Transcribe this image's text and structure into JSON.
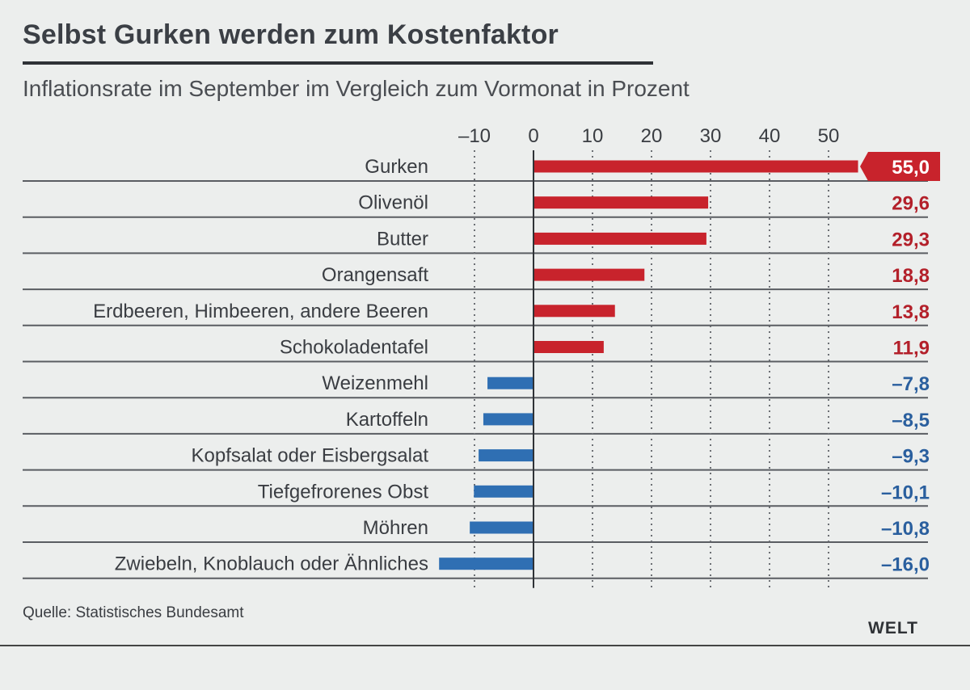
{
  "chart_data": {
    "type": "bar",
    "orientation": "horizontal",
    "title": "Selbst Gurken werden zum Kostenfaktor",
    "subtitle": "Inflationsrate im September im Vergleich zum Vormonat in Prozent",
    "categories": [
      "Gurken",
      "Olivenöl",
      "Butter",
      "Orangensaft",
      "Erdbeeren, Himbeeren, andere Beeren",
      "Schokoladentafel",
      "Weizenmehl",
      "Kartoffeln",
      "Kopfsalat oder Eisbergsalat",
      "Tiefgefrorenes Obst",
      "Möhren",
      "Zwiebeln, Knoblauch oder Ähnliches"
    ],
    "values": [
      55.0,
      29.6,
      29.3,
      18.8,
      13.8,
      11.9,
      -7.8,
      -8.5,
      -9.3,
      -10.1,
      -10.8,
      -16.0
    ],
    "value_labels": [
      "55,0",
      "29,6",
      "29,3",
      "18,8",
      "13,8",
      "11,9",
      "–7,8",
      "–8,5",
      "–9,3",
      "–10,1",
      "–10,8",
      "–16,0"
    ],
    "ticks": [
      -10,
      0,
      10,
      20,
      30,
      40,
      50
    ],
    "tick_labels": [
      "–10",
      "0",
      "10",
      "20",
      "30",
      "40",
      "50"
    ],
    "xlim": [
      -16,
      55
    ],
    "grid": true,
    "highlight_index": 0,
    "colors": {
      "positive": "#c8232c",
      "negative": "#2f6fb3",
      "highlight_text": "#ffffff"
    }
  },
  "source": "Quelle: Statistisches Bundesamt",
  "brand": "WELT"
}
